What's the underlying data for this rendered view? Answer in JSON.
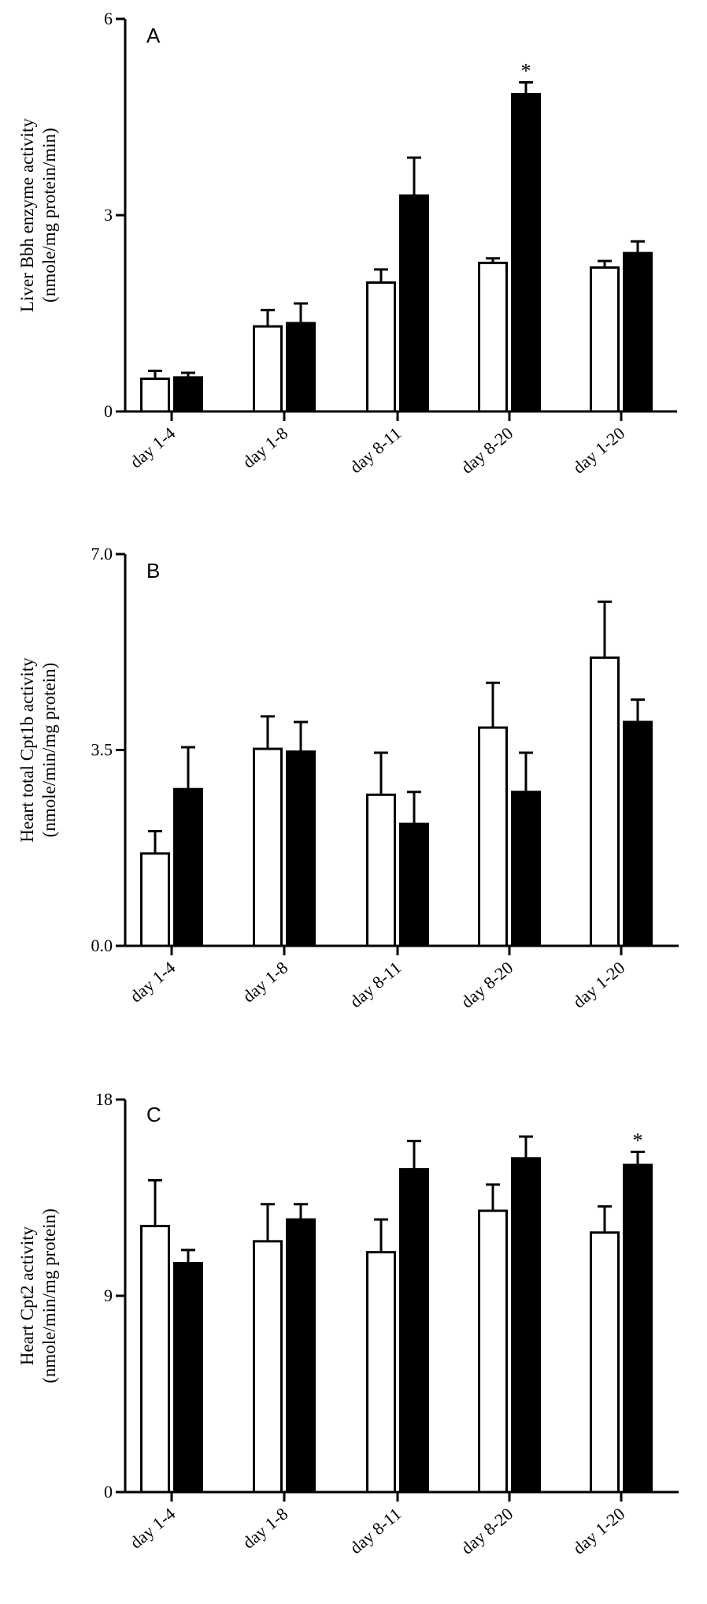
{
  "chart_data": [
    {
      "type": "bar",
      "panel": "A",
      "ylabel": [
        "Liver Bbh enzyme activity",
        "(nmole/mg protein/min)"
      ],
      "categories": [
        "day 1-4",
        "day 1-8",
        "day 8-11",
        "day 8-20",
        "day 1-20"
      ],
      "ylim": [
        0,
        6
      ],
      "yticks": [
        "0",
        "3",
        "6"
      ],
      "series": [
        {
          "name": "open bars",
          "fill": "#ffffff",
          "values": [
            0.5,
            1.3,
            1.97,
            2.27,
            2.2
          ],
          "errors": [
            0.12,
            0.25,
            0.2,
            0.07,
            0.1
          ]
        },
        {
          "name": "filled bars",
          "fill": "#000000",
          "values": [
            0.52,
            1.35,
            3.3,
            4.85,
            2.42
          ],
          "errors": [
            0.07,
            0.3,
            0.58,
            0.18,
            0.18
          ]
        }
      ],
      "significance": [
        {
          "category": 3,
          "series": 1,
          "label": "*"
        }
      ]
    },
    {
      "type": "bar",
      "panel": "B",
      "ylabel": [
        "Heart total Cpt1b activity",
        "(nmole/min/mg protein)"
      ],
      "categories": [
        "day 1-4",
        "day 1-8",
        "day 8-11",
        "day 8-20",
        "day 1-20"
      ],
      "ylim": [
        0,
        7
      ],
      "yticks": [
        "0.0",
        "3.5",
        "7.0"
      ],
      "series": [
        {
          "name": "open bars",
          "fill": "#ffffff",
          "values": [
            1.65,
            3.52,
            2.7,
            3.9,
            5.15
          ],
          "errors": [
            0.4,
            0.58,
            0.75,
            0.8,
            1.0
          ]
        },
        {
          "name": "filled bars",
          "fill": "#000000",
          "values": [
            2.8,
            3.47,
            2.18,
            2.75,
            4.0
          ],
          "errors": [
            0.75,
            0.53,
            0.57,
            0.7,
            0.4
          ]
        }
      ],
      "significance": []
    },
    {
      "type": "bar",
      "panel": "C",
      "ylabel": [
        "Heart Cpt2 activity",
        "(nmole/min/mg protein)"
      ],
      "categories": [
        "day 1-4",
        "day 1-8",
        "day 8-11",
        "day 8-20",
        "day 1-20"
      ],
      "ylim": [
        0,
        18
      ],
      "yticks": [
        "0",
        "9",
        "18"
      ],
      "series": [
        {
          "name": "open bars",
          "fill": "#ffffff",
          "values": [
            12.2,
            11.5,
            11.0,
            12.9,
            11.9
          ],
          "errors": [
            2.1,
            1.7,
            1.5,
            1.2,
            1.2
          ]
        },
        {
          "name": "filled bars",
          "fill": "#000000",
          "values": [
            10.5,
            12.5,
            14.8,
            15.3,
            15.0
          ],
          "errors": [
            0.6,
            0.7,
            1.3,
            1.0,
            0.6
          ]
        }
      ],
      "significance": [
        {
          "category": 4,
          "series": 1,
          "label": "*"
        }
      ]
    }
  ]
}
